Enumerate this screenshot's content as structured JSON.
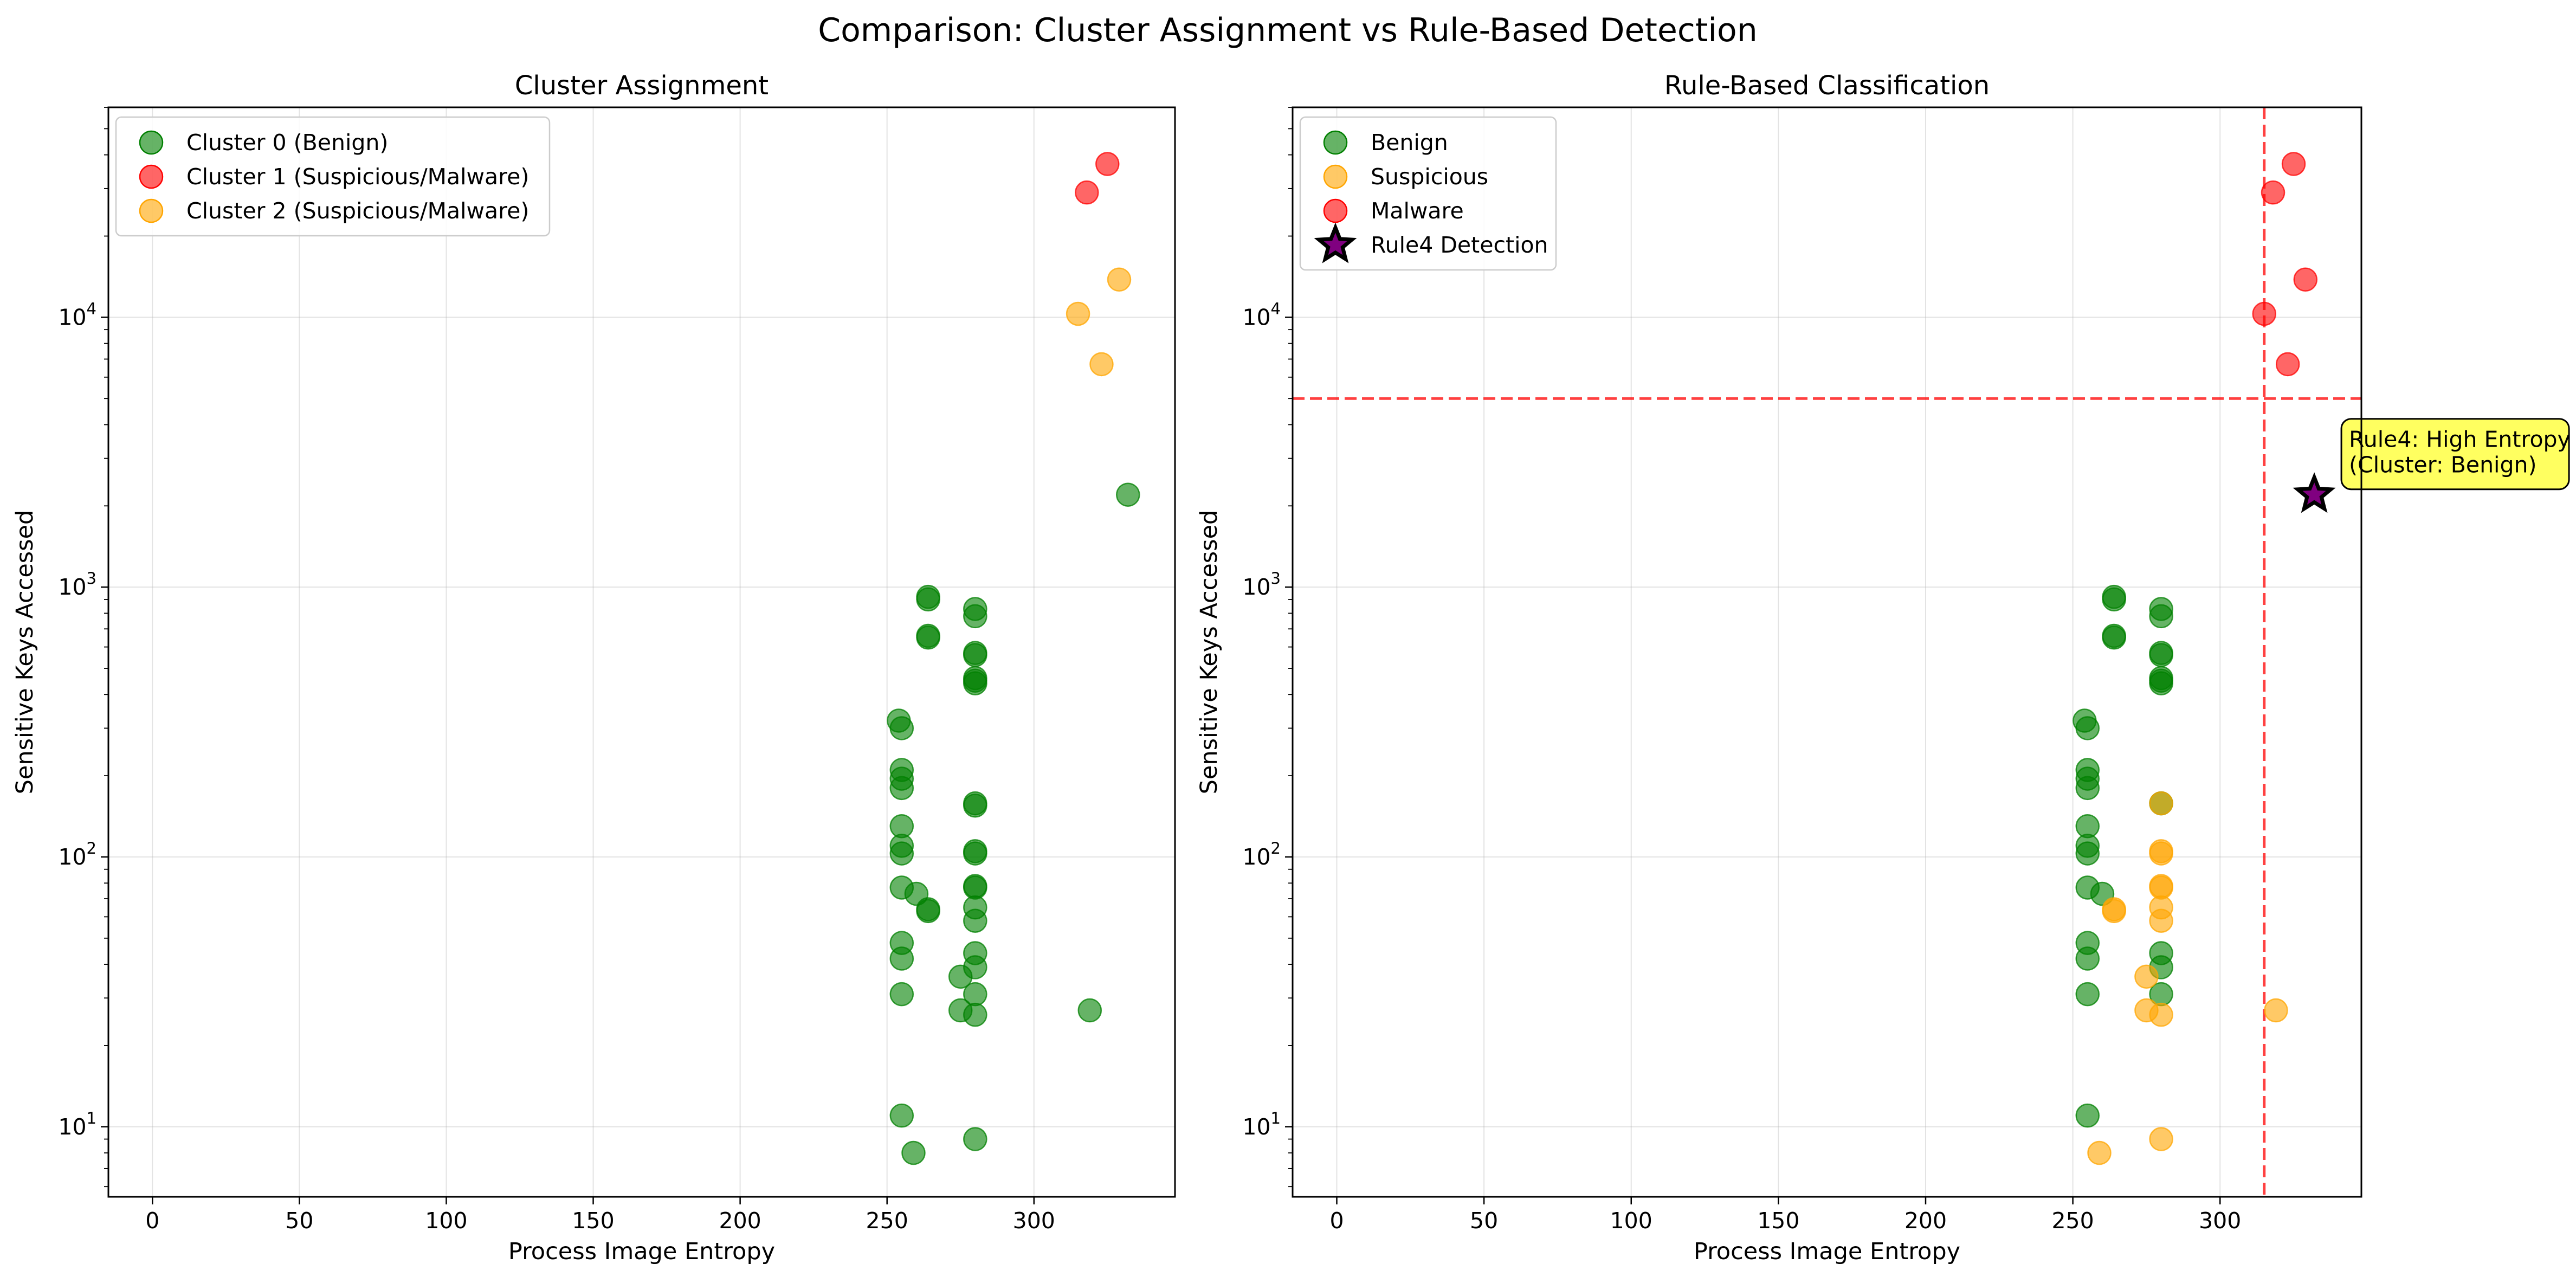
{
  "suptitle": "Comparison: Cluster Assignment vs Rule-Based Detection",
  "chart_data": [
    {
      "type": "scatter",
      "title": "Cluster Assignment",
      "xlabel": "Process Image Entropy",
      "ylabel": "Sensitive Keys Accessed",
      "xlim": [
        -15,
        348
      ],
      "ylim": [
        5.5,
        60000
      ],
      "yscale": "log",
      "grid": true,
      "legend_position": "top-left",
      "xticks": [
        0,
        50,
        100,
        150,
        200,
        250,
        300
      ],
      "yticks": [
        {
          "value": 10,
          "base": "10",
          "exp": "1"
        },
        {
          "value": 100,
          "base": "10",
          "exp": "2"
        },
        {
          "value": 1000,
          "base": "10",
          "exp": "3"
        },
        {
          "value": 10000,
          "base": "10",
          "exp": "4"
        }
      ],
      "series": [
        {
          "name": "Cluster 0 (Benign)",
          "color": "#008000",
          "marker": "circle",
          "points": [
            [
              254,
              320
            ],
            [
              255,
              300
            ],
            [
              255,
              210
            ],
            [
              255,
              195
            ],
            [
              255,
              180
            ],
            [
              255,
              130
            ],
            [
              255,
              110
            ],
            [
              255,
              103
            ],
            [
              255,
              77
            ],
            [
              255,
              48
            ],
            [
              255,
              42
            ],
            [
              255,
              31
            ],
            [
              255,
              11
            ],
            [
              260,
              73
            ],
            [
              259,
              8
            ],
            [
              264,
              920
            ],
            [
              264,
              900
            ],
            [
              264,
              660
            ],
            [
              264,
              650
            ],
            [
              264,
              64
            ],
            [
              264,
              63
            ],
            [
              275,
              36
            ],
            [
              275,
              27
            ],
            [
              280,
              830
            ],
            [
              280,
              780
            ],
            [
              280,
              570
            ],
            [
              280,
              560
            ],
            [
              280,
              460
            ],
            [
              280,
              450
            ],
            [
              280,
              440
            ],
            [
              280,
              158
            ],
            [
              280,
              155
            ],
            [
              280,
              105
            ],
            [
              280,
              103
            ],
            [
              280,
              78
            ],
            [
              280,
              77
            ],
            [
              280,
              65
            ],
            [
              280,
              58
            ],
            [
              280,
              44
            ],
            [
              280,
              39
            ],
            [
              280,
              31
            ],
            [
              280,
              26
            ],
            [
              280,
              9
            ],
            [
              319,
              27
            ],
            [
              332,
              2200
            ]
          ]
        },
        {
          "name": "Cluster 1 (Suspicious/Malware)",
          "color": "#ff0000",
          "marker": "circle",
          "points": [
            [
              318,
              29000
            ],
            [
              325,
              37000
            ]
          ]
        },
        {
          "name": "Cluster 2 (Suspicious/Malware)",
          "color": "#ffa500",
          "marker": "circle",
          "points": [
            [
              315,
              10300
            ],
            [
              323,
              6700
            ],
            [
              329,
              13800
            ]
          ]
        }
      ]
    },
    {
      "type": "scatter",
      "title": "Rule-Based Classification",
      "xlabel": "Process Image Entropy",
      "ylabel": "Sensitive Keys Accessed",
      "xlim": [
        -15,
        348
      ],
      "ylim": [
        5.5,
        60000
      ],
      "yscale": "log",
      "grid": true,
      "legend_position": "top-left",
      "xticks": [
        0,
        50,
        100,
        150,
        200,
        250,
        300
      ],
      "yticks": [
        {
          "value": 10,
          "base": "10",
          "exp": "1"
        },
        {
          "value": 100,
          "base": "10",
          "exp": "2"
        },
        {
          "value": 1000,
          "base": "10",
          "exp": "3"
        },
        {
          "value": 10000,
          "base": "10",
          "exp": "4"
        }
      ],
      "threshold_lines": {
        "x": 315,
        "y": 5000,
        "color": "#ff0000",
        "style": "dashed"
      },
      "series": [
        {
          "name": "Benign",
          "color": "#008000",
          "marker": "circle",
          "points": [
            [
              254,
              320
            ],
            [
              255,
              300
            ],
            [
              255,
              210
            ],
            [
              255,
              195
            ],
            [
              255,
              180
            ],
            [
              255,
              130
            ],
            [
              255,
              110
            ],
            [
              255,
              103
            ],
            [
              255,
              77
            ],
            [
              255,
              48
            ],
            [
              255,
              42
            ],
            [
              255,
              31
            ],
            [
              255,
              11
            ],
            [
              260,
              73
            ],
            [
              264,
              920
            ],
            [
              264,
              900
            ],
            [
              264,
              660
            ],
            [
              264,
              650
            ],
            [
              280,
              830
            ],
            [
              280,
              780
            ],
            [
              280,
              570
            ],
            [
              280,
              560
            ],
            [
              280,
              460
            ],
            [
              280,
              450
            ],
            [
              280,
              440
            ],
            [
              280,
              158
            ],
            [
              280,
              44
            ],
            [
              280,
              39
            ],
            [
              280,
              31
            ]
          ]
        },
        {
          "name": "Suspicious",
          "color": "#ffa500",
          "marker": "circle",
          "points": [
            [
              259,
              8
            ],
            [
              264,
              64
            ],
            [
              264,
              63
            ],
            [
              275,
              36
            ],
            [
              275,
              27
            ],
            [
              280,
              158
            ],
            [
              280,
              105
            ],
            [
              280,
              103
            ],
            [
              280,
              78
            ],
            [
              280,
              77
            ],
            [
              280,
              65
            ],
            [
              280,
              58
            ],
            [
              280,
              26
            ],
            [
              280,
              9
            ],
            [
              319,
              27
            ]
          ]
        },
        {
          "name": "Malware",
          "color": "#ff0000",
          "marker": "circle",
          "points": [
            [
              315,
              10300
            ],
            [
              318,
              29000
            ],
            [
              323,
              6700
            ],
            [
              325,
              37000
            ],
            [
              329,
              13800
            ]
          ]
        },
        {
          "name": "Rule4 Detection",
          "color": "#800080",
          "marker": "star",
          "points": [
            [
              332,
              2200
            ]
          ]
        }
      ],
      "annotation": {
        "lines": [
          "Rule4: High Entropy",
          "(Cluster: Benign)"
        ],
        "x": 332,
        "y": 2200,
        "bg": "#ffff44"
      }
    }
  ]
}
